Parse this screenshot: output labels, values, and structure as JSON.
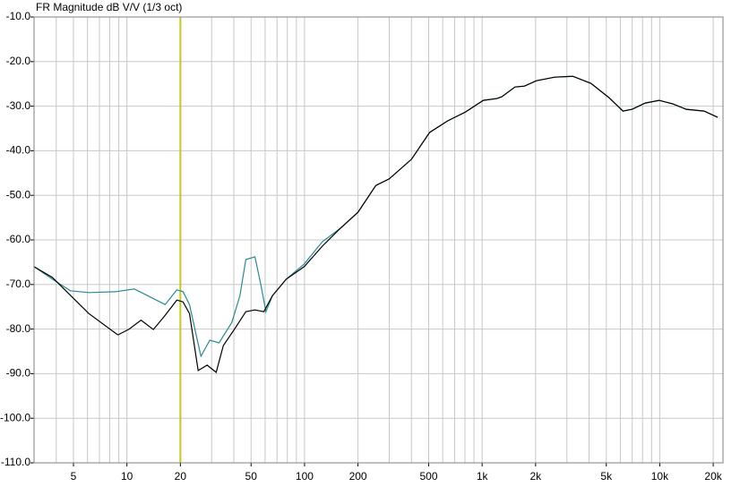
{
  "chart_data": {
    "type": "line",
    "title": "FR Magnitude dB V/V (1/3 oct)",
    "xscale": "log",
    "xlim": [
      3,
      22700
    ],
    "ylim": [
      -110,
      -10
    ],
    "xticks": [
      5,
      10,
      20,
      50,
      100,
      200,
      500,
      {
        "value": 1000,
        "label": "1k"
      },
      {
        "value": 2000,
        "label": "2k"
      },
      {
        "value": 5000,
        "label": "5k"
      },
      {
        "value": 10000,
        "label": "10k"
      },
      {
        "value": 20000,
        "label": "20k"
      }
    ],
    "xminorticks": [
      3,
      4,
      6,
      7,
      8,
      9,
      30,
      40,
      60,
      70,
      80,
      90,
      300,
      400,
      600,
      700,
      800,
      900,
      3000,
      4000,
      6000,
      7000,
      8000,
      9000
    ],
    "yticks": [
      {
        "value": -10,
        "label": "-10.0"
      },
      {
        "value": -20,
        "label": "-20.0"
      },
      {
        "value": -30,
        "label": "-30.0"
      },
      {
        "value": -40,
        "label": "-40.0"
      },
      {
        "value": -50,
        "label": "-50.0"
      },
      {
        "value": -60,
        "label": "-60.0"
      },
      {
        "value": -70,
        "label": "-70.0"
      },
      {
        "value": -80,
        "label": "-80.0"
      },
      {
        "value": -90,
        "label": "-90.0"
      },
      {
        "value": -100,
        "label": "-100.0"
      },
      {
        "value": -110,
        "label": "-110.0"
      }
    ],
    "grid": true,
    "cursor": {
      "x": 20,
      "color": "#c8c820"
    },
    "series": [
      {
        "color": "#2a8a94",
        "x": [
          3,
          3.8,
          4.8,
          6.1,
          8.7,
          11,
          13.1,
          16.4,
          19.1,
          20.7,
          22.5,
          26.1,
          29.3,
          33,
          39,
          43.3,
          46.7,
          52.6,
          57,
          60.6,
          66,
          79,
          99.5,
          126,
          159,
          200,
          252,
          300,
          400,
          506,
          640,
          806,
          1015,
          1210,
          1290,
          1530,
          1730,
          2020,
          2560,
          3240,
          4100,
          5180,
          6200,
          6990,
          8290,
          9920,
          11850,
          14100,
          17800,
          21200
        ],
        "values": [
          -66,
          -68.8,
          -71.4,
          -71.8,
          -71.6,
          -71,
          -72.5,
          -74.5,
          -71.2,
          -71.6,
          -74.5,
          -86.1,
          -82.5,
          -83.1,
          -78.5,
          -72.5,
          -64.4,
          -63.8,
          -70.4,
          -76.1,
          -72.5,
          -68.8,
          -65.4,
          -60.4,
          -57.4,
          -53.8,
          -47.8,
          -46.3,
          -41.9,
          -35.9,
          -33.3,
          -31.3,
          -28.7,
          -28.3,
          -27.9,
          -25.7,
          -25.5,
          -24.3,
          -23.5,
          -23.3,
          -24.9,
          -28.1,
          -31.1,
          -30.7,
          -29.3,
          -28.7,
          -29.5,
          -30.7,
          -31.1,
          -32.5
        ]
      },
      {
        "color": "#000000",
        "x": [
          3,
          3.8,
          6.1,
          8.9,
          10.3,
          12,
          14.1,
          16.4,
          19.1,
          20.7,
          22.5,
          25.2,
          28.3,
          31.8,
          34.9,
          40.2,
          46.7,
          52.6,
          59,
          66,
          79,
          99.5,
          126,
          159,
          200,
          252,
          300,
          400,
          506,
          640,
          806,
          1015,
          1210,
          1290,
          1530,
          1730,
          2020,
          2560,
          3240,
          4100,
          5180,
          6200,
          6990,
          8290,
          9920,
          11850,
          14100,
          17800,
          21200
        ],
        "values": [
          -66,
          -68.4,
          -76.5,
          -81.3,
          -80,
          -78,
          -80.1,
          -76.9,
          -73.5,
          -73.9,
          -76.5,
          -89.3,
          -88.1,
          -89.7,
          -83.7,
          -80.1,
          -76.1,
          -75.7,
          -76.1,
          -72.5,
          -68.8,
          -66,
          -61.4,
          -57.4,
          -53.8,
          -47.8,
          -46.3,
          -41.9,
          -35.9,
          -33.3,
          -31.3,
          -28.7,
          -28.3,
          -27.9,
          -25.7,
          -25.5,
          -24.3,
          -23.5,
          -23.3,
          -24.9,
          -28.1,
          -31.1,
          -30.7,
          -29.3,
          -28.7,
          -29.5,
          -30.7,
          -31.1,
          -32.5
        ]
      }
    ]
  }
}
